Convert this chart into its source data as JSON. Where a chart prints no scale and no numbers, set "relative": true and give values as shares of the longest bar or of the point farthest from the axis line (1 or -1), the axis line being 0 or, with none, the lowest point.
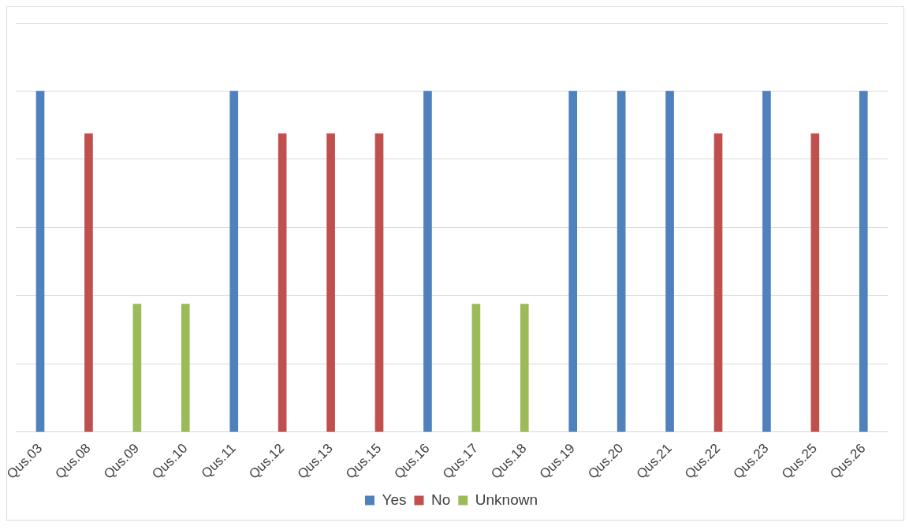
{
  "chart_data": {
    "type": "bar",
    "relative": true,
    "grid": "y",
    "legend": "bottom",
    "categories": [
      "Qus.03",
      "Qus.08",
      "Qus.09",
      "Qus.10",
      "Qus.11",
      "Qus.12",
      "Qus.13",
      "Qus.15",
      "Qus.16",
      "Qus.17",
      "Qus.18",
      "Qus.19",
      "Qus.20",
      "Qus.21",
      "Qus.22",
      "Qus.23",
      "Qus.25",
      "Qus.26"
    ],
    "series": [
      {
        "name": "Yes",
        "color": "#4f81bd",
        "values": [
          1,
          null,
          null,
          null,
          1,
          null,
          null,
          null,
          1,
          null,
          null,
          1,
          1,
          1,
          null,
          1,
          null,
          1
        ]
      },
      {
        "name": "No",
        "color": "#c0504d",
        "values": [
          null,
          0.875,
          null,
          null,
          null,
          0.875,
          0.875,
          0.875,
          null,
          null,
          null,
          null,
          null,
          null,
          0.875,
          null,
          0.875,
          null
        ]
      },
      {
        "name": "Unknown",
        "color": "#9bbb59",
        "values": [
          null,
          null,
          0.375,
          0.375,
          null,
          null,
          null,
          null,
          null,
          0.375,
          0.375,
          null,
          null,
          null,
          null,
          null,
          null,
          null
        ]
      }
    ]
  }
}
